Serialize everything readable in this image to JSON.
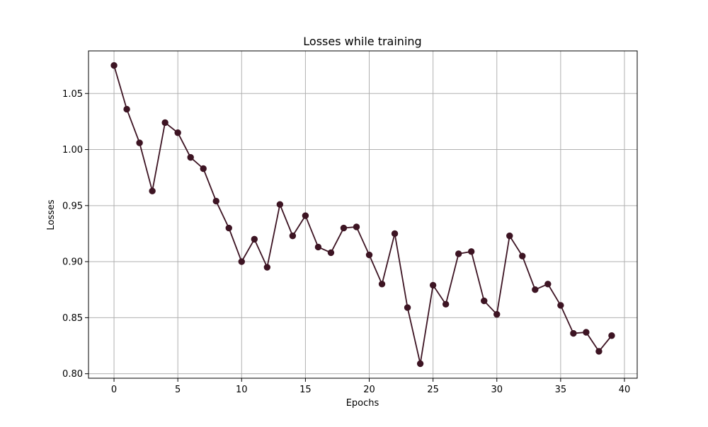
{
  "chart_data": {
    "type": "line",
    "title": "Losses while training",
    "xlabel": "Epochs",
    "ylabel": "Losses",
    "xlim": [
      -2,
      41
    ],
    "ylim": [
      0.796,
      1.088
    ],
    "xticks": [
      0,
      5,
      10,
      15,
      20,
      25,
      30,
      35,
      40
    ],
    "yticks": [
      0.8,
      0.85,
      0.9,
      0.95,
      1.0,
      1.05
    ],
    "grid": true,
    "series": [
      {
        "color": "#3d1423",
        "marker": "circle",
        "x": [
          0,
          1,
          2,
          3,
          4,
          5,
          6,
          7,
          8,
          9,
          10,
          11,
          12,
          13,
          14,
          15,
          16,
          17,
          18,
          19,
          20,
          21,
          22,
          23,
          24,
          25,
          26,
          27,
          28,
          29,
          30,
          31,
          32,
          33,
          34,
          35,
          36,
          37,
          38,
          39
        ],
        "y": [
          1.075,
          1.036,
          1.006,
          0.963,
          1.024,
          1.015,
          0.993,
          0.983,
          0.954,
          0.93,
          0.9,
          0.92,
          0.895,
          0.951,
          0.923,
          0.941,
          0.913,
          0.908,
          0.93,
          0.931,
          0.906,
          0.88,
          0.925,
          0.859,
          0.809,
          0.879,
          0.862,
          0.907,
          0.909,
          0.865,
          0.853,
          0.923,
          0.905,
          0.875,
          0.88,
          0.861,
          0.836,
          0.837,
          0.82,
          0.834
        ]
      }
    ]
  }
}
